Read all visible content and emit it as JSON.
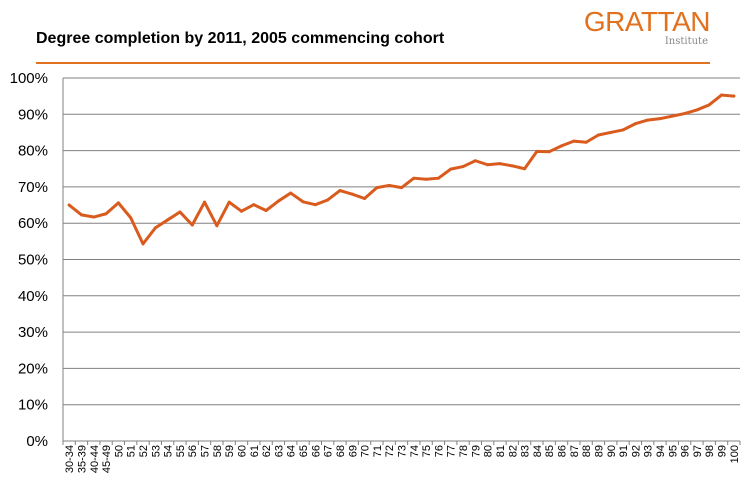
{
  "header": {
    "title": "Degree completion by 2011, 2005 commencing cohort",
    "logo_main": "GRATTAN",
    "logo_sub": "Institute"
  },
  "colors": {
    "accent": "#E0711E",
    "line": "#D95B1E",
    "grid": "#808080",
    "text": "#000000"
  },
  "chart_data": {
    "type": "line",
    "title": "Degree completion by 2011, 2005 commencing cohort",
    "xlabel": "",
    "ylabel": "",
    "ylim": [
      0,
      100
    ],
    "yticks": [
      "0%",
      "10%",
      "20%",
      "30%",
      "40%",
      "50%",
      "60%",
      "70%",
      "80%",
      "90%",
      "100%"
    ],
    "grid": true,
    "legend": "none",
    "categories": [
      "30-34",
      "35-39",
      "40-44",
      "45-49",
      "50",
      "51",
      "52",
      "53",
      "54",
      "55",
      "56",
      "57",
      "58",
      "59",
      "60",
      "61",
      "62",
      "63",
      "64",
      "65",
      "66",
      "67",
      "68",
      "69",
      "70",
      "71",
      "72",
      "73",
      "74",
      "75",
      "76",
      "77",
      "78",
      "79",
      "80",
      "81",
      "82",
      "83",
      "84",
      "85",
      "86",
      "87",
      "88",
      "89",
      "90",
      "91",
      "92",
      "93",
      "94",
      "95",
      "96",
      "97",
      "98",
      "99",
      "100"
    ],
    "series": [
      {
        "values": [
          65,
          62.3,
          61.7,
          62.6,
          65.6,
          61.5,
          54.3,
          58.7,
          60.9,
          63.1,
          59.5,
          65.8,
          59.3,
          65.8,
          63.3,
          65.1,
          63.5,
          66.1,
          68.3,
          65.9,
          65.1,
          66.4,
          69,
          68,
          66.8,
          69.8,
          70.4,
          69.8,
          72.4,
          72.1,
          72.4,
          74.9,
          75.6,
          77.2,
          76.1,
          76.4,
          75.8,
          75,
          79.8,
          79.7,
          81.3,
          82.6,
          82.3,
          84.3,
          85,
          85.7,
          87.4,
          88.4,
          88.8,
          89.5,
          90.2,
          91.2,
          92.6,
          95.3,
          95
        ]
      }
    ]
  }
}
